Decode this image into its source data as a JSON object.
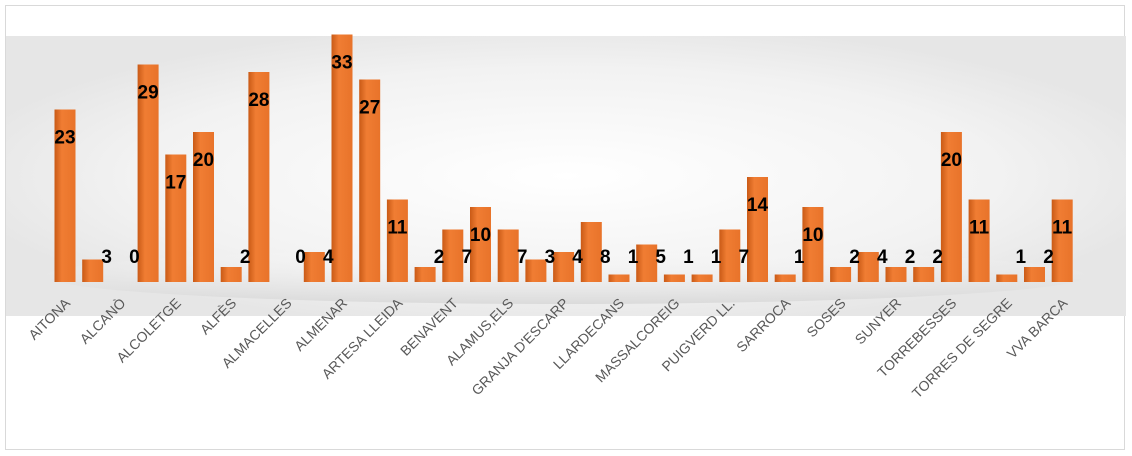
{
  "chart_data": {
    "type": "bar",
    "title": "",
    "xlabel": "",
    "ylabel": "",
    "ylim": [
      0,
      35
    ],
    "grid": false,
    "legend": "none",
    "bar_color": "#E8732A",
    "bar_color_dark": "#C95A16",
    "label_color": "#000000",
    "tick_color": "#595959",
    "categories": [
      "AITONA",
      "",
      "ALCANÒ",
      "",
      "ALCOLETGE",
      "",
      "ALFÈS",
      "",
      "ALMACELLES",
      "",
      "ALMENAR",
      "",
      "ARTESA LLEIDA",
      "",
      "BENAVENT",
      "",
      "ALAMUS,ELS",
      "",
      "GRANJA D'ESCARP",
      "",
      "LLARDECANS",
      "",
      "MASSALCOREIG",
      "",
      "PUIGVERD LL.",
      "",
      "SARROCA",
      "",
      "SOSES",
      "",
      "SUNYER",
      "",
      "TORREBESSES",
      "",
      "TORRES DE SEGRE",
      "",
      "VVA BARCA"
    ],
    "values": [
      23,
      3,
      0,
      29,
      17,
      20,
      2,
      28,
      0,
      4,
      33,
      27,
      11,
      2,
      7,
      10,
      7,
      3,
      4,
      8,
      1,
      5,
      1,
      1,
      7,
      14,
      1,
      10,
      2,
      4,
      2,
      2,
      20,
      11,
      1,
      2,
      11
    ],
    "data_labels": [
      "23",
      "3",
      "0",
      "29",
      "17",
      "20",
      "2",
      "28",
      "0",
      "4",
      "33",
      "27",
      "11",
      "2",
      "7",
      "10",
      "7",
      "3",
      "4",
      "8",
      "1",
      "5",
      "1",
      "1",
      "7",
      "14",
      "1",
      "10",
      "2",
      "4",
      "2",
      "2",
      "20",
      "11",
      "1",
      "2",
      "11"
    ]
  }
}
